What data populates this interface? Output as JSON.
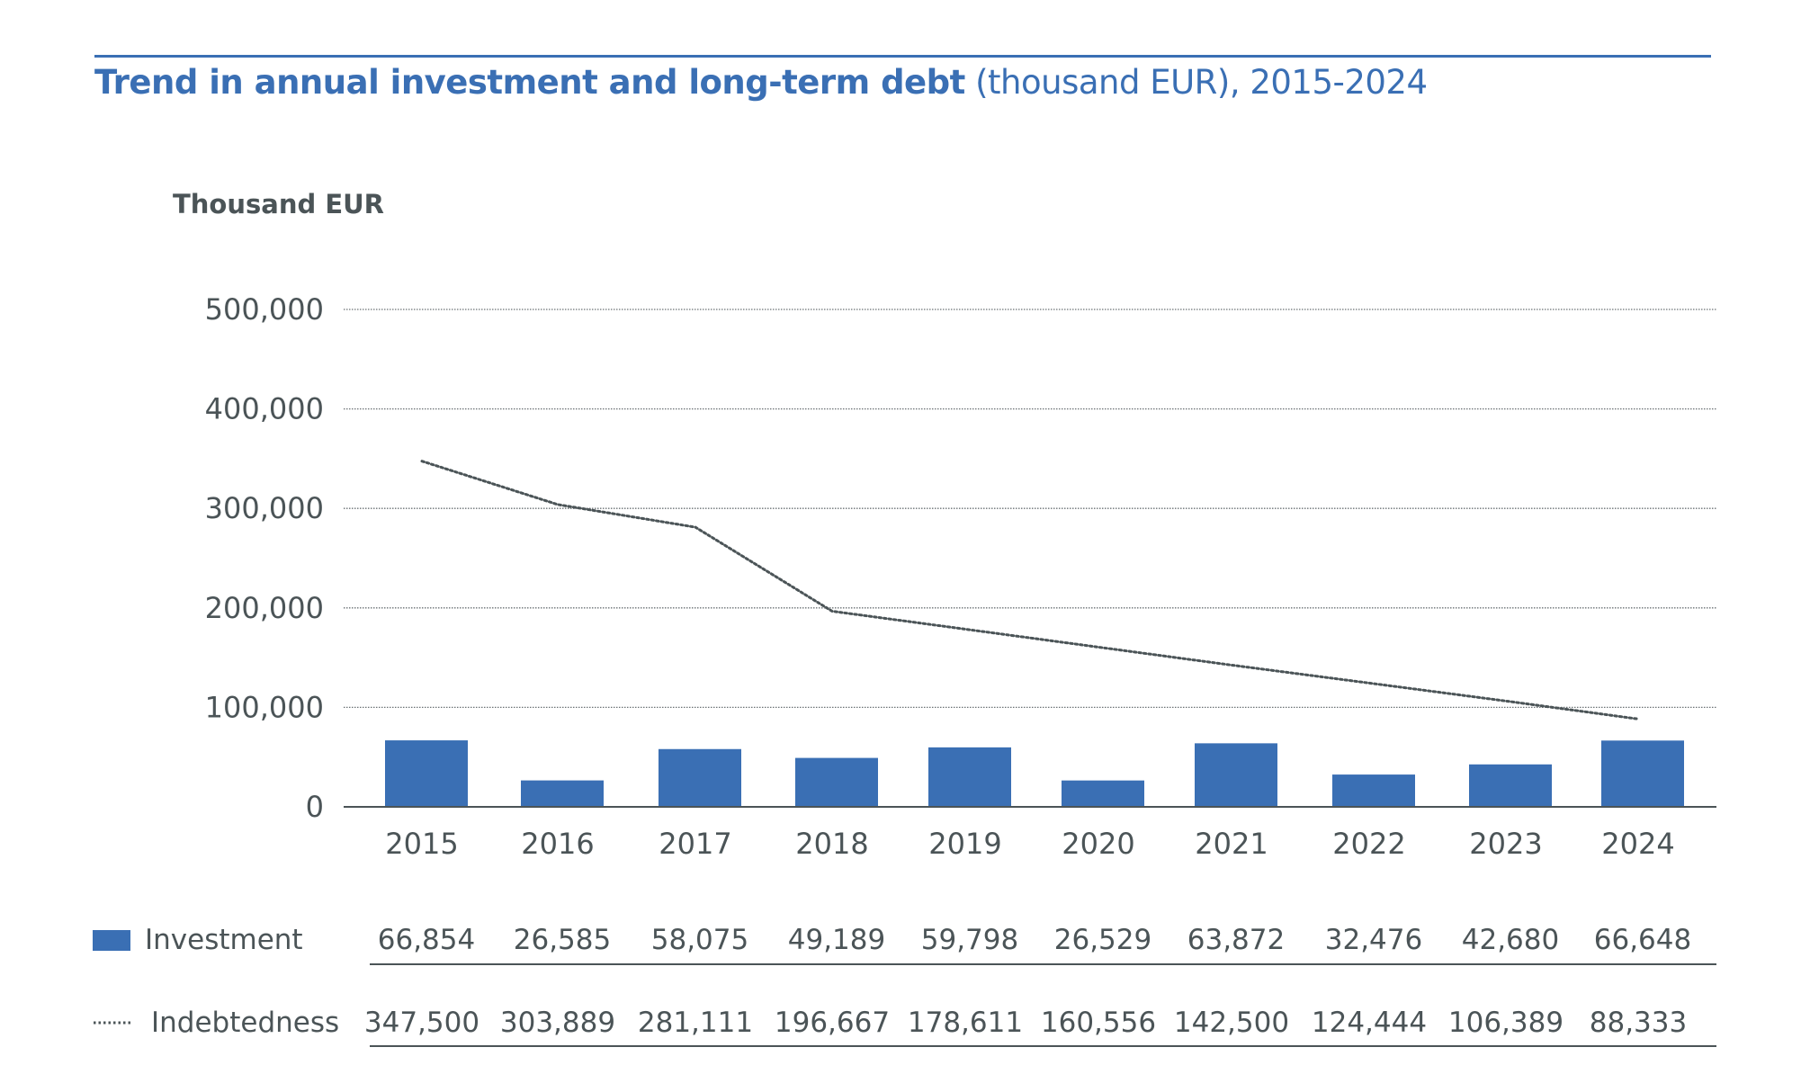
{
  "title_bold": "Trend in annual investment and long-term debt",
  "title_rest": " (thousand EUR), 2015-2024",
  "chart_data": {
    "type": "bar+line",
    "title": "Trend in annual investment and long-term debt (thousand EUR), 2015-2024",
    "ylabel": "Thousand EUR",
    "ylim": [
      0,
      500000
    ],
    "yticks": [
      "0",
      "100,000",
      "200,000",
      "300,000",
      "400,000",
      "500,000"
    ],
    "ytick_values": [
      0,
      100000,
      200000,
      300000,
      400000,
      500000
    ],
    "grid": true,
    "categories": [
      "2015",
      "2016",
      "2017",
      "2018",
      "2019",
      "2020",
      "2021",
      "2022",
      "2023",
      "2024"
    ],
    "series": [
      {
        "name": "Investment",
        "type": "bar",
        "color": "#3a6fb4",
        "values": [
          66854,
          26585,
          58075,
          49189,
          59798,
          26529,
          63872,
          32476,
          42680,
          66648
        ],
        "labels": [
          "66,854",
          "26,585",
          "58,075",
          "49,189",
          "59,798",
          "26,529",
          "63,872",
          "32,476",
          "42,680",
          "66,648"
        ]
      },
      {
        "name": "Indebtedness",
        "type": "line",
        "style": "dotted",
        "color": "#4b5457",
        "values": [
          347500,
          303889,
          281111,
          196667,
          178611,
          160556,
          142500,
          124444,
          106389,
          88333
        ],
        "labels": [
          "347,500",
          "303,889",
          "281,111",
          "196,667",
          "178,611",
          "160,556",
          "142,500",
          "124,444",
          "106,389",
          "88,333"
        ]
      }
    ],
    "legend": "bottom-table"
  }
}
